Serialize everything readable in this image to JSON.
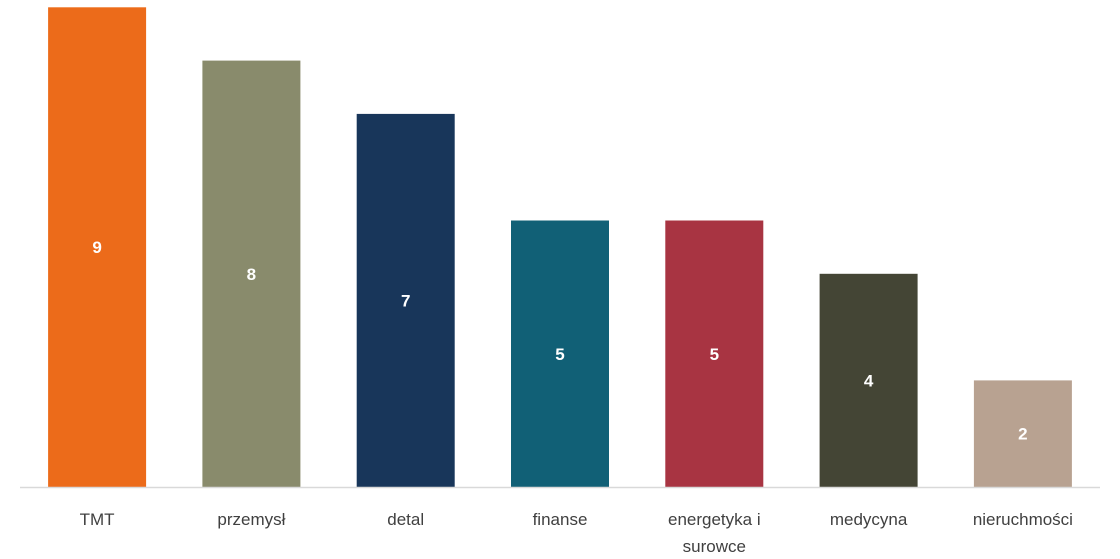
{
  "chart_data": {
    "type": "bar",
    "categories": [
      [
        "TMT"
      ],
      [
        "przemysł"
      ],
      [
        "detal"
      ],
      [
        "finanse"
      ],
      [
        "energetyka i",
        "surowce"
      ],
      [
        "medycyna"
      ],
      [
        "nieruchmości"
      ]
    ],
    "values": [
      9,
      8,
      7,
      5,
      5,
      4,
      2
    ],
    "colors": [
      "#EC6B1A",
      "#898B6C",
      "#18365A",
      "#116076",
      "#A83442",
      "#444535",
      "#B8A291"
    ],
    "ylim": [
      0,
      9.1
    ],
    "grid": false,
    "legend": "none",
    "title": "",
    "xlabel": "",
    "ylabel": "",
    "axis_color": "#D9D9D9",
    "label_color": "#404040",
    "value_label_color": "#FFFFFF"
  }
}
